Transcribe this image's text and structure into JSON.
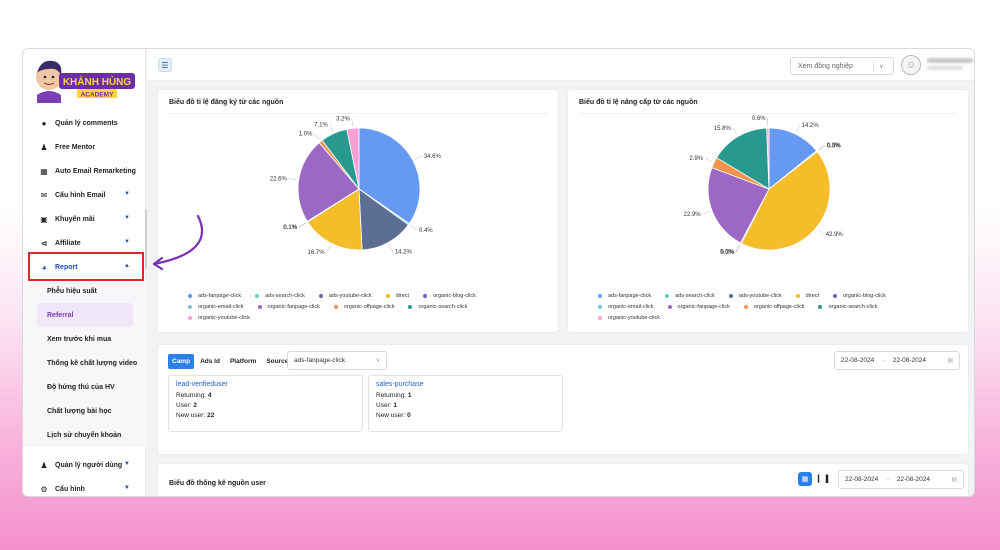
{
  "brand": {
    "logo_text": "KHÁNH HÙNG",
    "logo_sub": "ACADEMY"
  },
  "sidebar": {
    "items": [
      {
        "label": "Quản lý comments",
        "icon": "comments-icon"
      },
      {
        "label": "Free Mentor",
        "icon": "user-icon"
      },
      {
        "label": "Auto Email Remarketing",
        "icon": "email-auto-icon"
      },
      {
        "label": "Cấu hình Email",
        "icon": "email-icon",
        "chevron": "down"
      },
      {
        "label": "Khuyến mãi",
        "icon": "ticket-icon",
        "chevron": "down"
      },
      {
        "label": "Affiliate",
        "icon": "share-icon",
        "chevron": "down"
      },
      {
        "label": "Report",
        "icon": "pie-chart-icon",
        "chevron": "up"
      }
    ],
    "sub_items": [
      "Phễu hiệu suất",
      "Referral",
      "Xem trước khi mua",
      "Thống kê chất lượng video",
      "Độ hứng thú của HV",
      "Chất lượng bài học",
      "Lịch sử chuyển khoản"
    ],
    "bottom_items": [
      {
        "label": "Quản lý người dùng",
        "icon": "users-icon",
        "chevron": "down"
      },
      {
        "label": "Cấu hình",
        "icon": "gear-icon",
        "chevron": "down"
      }
    ]
  },
  "topbar": {
    "colleague_placeholder": "Xem đồng nghiệp"
  },
  "chart1": {
    "title": "Biểu đồ tỉ lệ đăng ký từ các nguồn",
    "chart_data": {
      "type": "pie",
      "title": "Biểu đồ tỉ lệ đăng ký từ các nguồn",
      "slices": [
        {
          "label": "ads-fanpage-click",
          "value": 34.6,
          "color": "#6699f2"
        },
        {
          "label": "ads-search-click",
          "value": 0.4,
          "color": "#5fd0c4"
        },
        {
          "label": "ads-youtube-click",
          "value": 14.2,
          "color": "#5c6e94"
        },
        {
          "label": "direct",
          "value": 16.7,
          "color": "#f5bd2a"
        },
        {
          "label": "organic-blog-click",
          "value": 0.1,
          "color": "#7a58c9"
        },
        {
          "label": "organic-email-click",
          "value": 0.1,
          "color": "#7fbcf0"
        },
        {
          "label": "organic-fanpage-click",
          "value": 22.6,
          "color": "#9b68c6"
        },
        {
          "label": "organic-offpage-click",
          "value": 1.0,
          "color": "#f3934e"
        },
        {
          "label": "organic-search-click",
          "value": 7.1,
          "color": "#27998f"
        },
        {
          "label": "organic-youtube-click",
          "value": 3.2,
          "color": "#f5a1d3"
        }
      ]
    }
  },
  "chart2": {
    "title": "Biểu đồ tỉ lệ nâng cấp từ các nguồn",
    "chart_data": {
      "type": "pie",
      "title": "Biểu đồ tỉ lệ nâng cấp từ các nguồn",
      "slices": [
        {
          "label": "ads-fanpage-click",
          "value": 14.2,
          "color": "#6699f2"
        },
        {
          "label": "ads-search-click",
          "value": 0.3,
          "color": "#5fd0c4"
        },
        {
          "label": "ads-youtube-click",
          "value": 0.0,
          "color": "#5c6e94"
        },
        {
          "label": "direct",
          "value": 42.9,
          "color": "#f5bd2a"
        },
        {
          "label": "organic-blog-click",
          "value": 0.3,
          "color": "#7a58c9"
        },
        {
          "label": "organic-email-click",
          "value": 0.0,
          "color": "#7fbcf0"
        },
        {
          "label": "organic-fanpage-click",
          "value": 22.9,
          "color": "#9b68c6"
        },
        {
          "label": "organic-offpage-click",
          "value": 2.9,
          "color": "#f3934e"
        },
        {
          "label": "organic-search-click",
          "value": 15.8,
          "color": "#27998f"
        },
        {
          "label": "organic-youtube-click",
          "value": 0.6,
          "color": "#f5a1d3"
        }
      ]
    }
  },
  "filters": {
    "tabs": [
      "Camp",
      "Ads Id",
      "Platform",
      "Source"
    ],
    "active_tab": "Camp",
    "source_select": "ads-fanpage-click",
    "date_from": "22-08-2024",
    "date_to": "22-08-2024",
    "arrow": "→"
  },
  "metrics": [
    {
      "title": "lead-verifieduser",
      "returning_label": "Returning:",
      "returning": "4",
      "user_label": "User:",
      "user": "2",
      "new_label": "New user:",
      "new_user": "22"
    },
    {
      "title": "sales-purchase",
      "returning_label": "Returning:",
      "returning": "1",
      "user_label": "User:",
      "user": "1",
      "new_label": "New user:",
      "new_user": "0"
    }
  ],
  "user_source": {
    "title": "Biểu đồ thống kê nguồn user",
    "date_from": "22-08-2024",
    "date_to": "22-08-2024",
    "arrow": "→"
  },
  "colors": {
    "accent": "#2b7fe6",
    "report_active": "#1f4fb5",
    "highlight_border": "#e0262c",
    "active_sub_bg": "#efe6f7"
  }
}
